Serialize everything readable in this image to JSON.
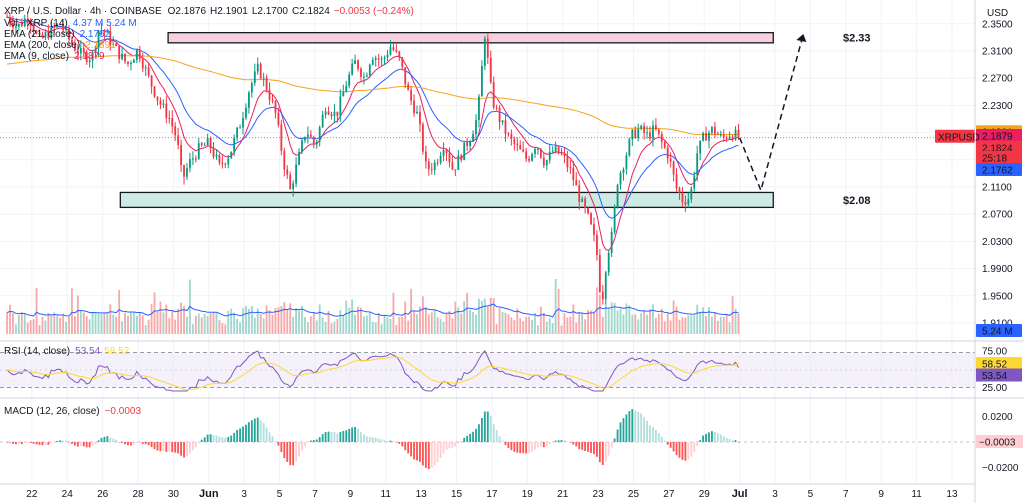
{
  "header": {
    "symbol_line": "XRP / U.S. Dollar · 4h · COINBASE",
    "open": "O2.1876",
    "high": "H2.1901",
    "low": "L2.1700",
    "close": "C2.1824",
    "change": "−0.0053 (−0.24%)"
  },
  "price_axis": {
    "unit": "USD"
  },
  "indicators": [
    {
      "label": "Vol · XRP (14)",
      "value": "4.37 M 5.24 M",
      "color": "#2962ff"
    },
    {
      "label": "EMA (21, close)",
      "value": "2.1762",
      "color": "#2962ff"
    },
    {
      "label": "EMA (200, close)",
      "value": "2.1891",
      "color": "#f7a21b"
    },
    {
      "label": "EMA (9, close)",
      "value": "2.1879",
      "color": "#e91e63"
    }
  ],
  "zones": [
    {
      "name": "resistance",
      "label": "$2.33",
      "low": 2.322,
      "high": 2.337,
      "fill": "#f8d0dc"
    },
    {
      "name": "support",
      "label": "$2.08",
      "low": 2.08,
      "high": 2.102,
      "fill": "#cdebe2"
    }
  ],
  "badges": {
    "ema200": {
      "text": "2.1891",
      "color": "#f7a21b",
      "value": 2.1891
    },
    "ema9": {
      "text": "2.1879",
      "color": "#e91e63",
      "value": 2.1879
    },
    "price": {
      "text": "2.1824",
      "color": "#f23645",
      "value": 2.1824
    },
    "countdown": {
      "text": "25:18",
      "color": "#f23645",
      "value": 2.1805
    },
    "ema21": {
      "text": "2.1762",
      "color": "#2962ff",
      "value": 2.1762
    },
    "symbol": "XRPUSD",
    "volume": {
      "text": "5.24 M",
      "color": "#2962ff"
    }
  },
  "rsi": {
    "label": "RSI (14, close)",
    "value": "53.54",
    "ma_value": "58.52",
    "levels": [
      "75.00",
      "25.00"
    ],
    "value_color": "#7e57c2",
    "ma_color": "#fdd835"
  },
  "macd": {
    "label": "MACD (12, 26, close)",
    "value": "−0.0003",
    "ticks": [
      "0.0200",
      "−0.0200"
    ],
    "badge": "−0.0003"
  },
  "chart_data": {
    "type": "candlestick",
    "timeframe": "4h",
    "y_ticks": [
      2.35,
      2.31,
      2.27,
      2.23,
      2.19,
      2.15,
      2.11,
      2.07,
      2.03,
      1.99,
      1.95,
      1.91
    ],
    "y_tick_labels": [
      "2.3500",
      "2.3100",
      "2.2700",
      "2.2300",
      "2.1900",
      "2.1500",
      "2.1100",
      "2.0700",
      "2.0300",
      "1.9900",
      "1.9500",
      "1.9100"
    ],
    "ylim": [
      1.885,
      2.385
    ],
    "x_tick_labels": [
      "22",
      "24",
      "26",
      "28",
      "30",
      "Jun",
      "3",
      "5",
      "7",
      "9",
      "11",
      "13",
      "15",
      "17",
      "19",
      "21",
      "23",
      "25",
      "27",
      "29",
      "Jul",
      "3",
      "5",
      "7",
      "9",
      "11",
      "13"
    ],
    "x_tick_days": [
      22,
      24,
      26,
      28,
      30,
      32,
      34,
      36,
      38,
      40,
      42,
      44,
      46,
      48,
      50,
      52,
      54,
      56,
      58,
      60,
      62,
      64,
      66,
      68,
      70,
      72,
      74
    ],
    "xlim": [
      20.2,
      75.3
    ],
    "anchors": [
      [
        20.6,
        2.36
      ],
      [
        21.2,
        2.345
      ],
      [
        21.8,
        2.362
      ],
      [
        22.4,
        2.325
      ],
      [
        23.0,
        2.338
      ],
      [
        23.6,
        2.35
      ],
      [
        24.2,
        2.322
      ],
      [
        24.8,
        2.305
      ],
      [
        25.4,
        2.3
      ],
      [
        25.8,
        2.345
      ],
      [
        26.2,
        2.335
      ],
      [
        26.8,
        2.31
      ],
      [
        27.4,
        2.29
      ],
      [
        28.0,
        2.312
      ],
      [
        28.6,
        2.27
      ],
      [
        29.2,
        2.235
      ],
      [
        29.8,
        2.21
      ],
      [
        30.2,
        2.18
      ],
      [
        30.5,
        2.12
      ],
      [
        30.9,
        2.145
      ],
      [
        31.4,
        2.165
      ],
      [
        32.0,
        2.175
      ],
      [
        32.6,
        2.14
      ],
      [
        33.2,
        2.16
      ],
      [
        33.8,
        2.205
      ],
      [
        34.3,
        2.255
      ],
      [
        34.8,
        2.285
      ],
      [
        35.3,
        2.255
      ],
      [
        35.8,
        2.215
      ],
      [
        36.2,
        2.15
      ],
      [
        36.6,
        2.105
      ],
      [
        37.0,
        2.145
      ],
      [
        37.5,
        2.195
      ],
      [
        38.0,
        2.17
      ],
      [
        38.6,
        2.23
      ],
      [
        39.2,
        2.215
      ],
      [
        39.8,
        2.265
      ],
      [
        40.3,
        2.295
      ],
      [
        40.8,
        2.27
      ],
      [
        41.2,
        2.305
      ],
      [
        41.8,
        2.295
      ],
      [
        42.3,
        2.318
      ],
      [
        42.8,
        2.295
      ],
      [
        43.3,
        2.245
      ],
      [
        43.8,
        2.215
      ],
      [
        44.3,
        2.135
      ],
      [
        44.8,
        2.145
      ],
      [
        45.3,
        2.175
      ],
      [
        45.8,
        2.135
      ],
      [
        46.2,
        2.155
      ],
      [
        46.8,
        2.185
      ],
      [
        47.2,
        2.215
      ],
      [
        47.6,
        2.335
      ],
      [
        48.0,
        2.24
      ],
      [
        48.5,
        2.205
      ],
      [
        49.0,
        2.18
      ],
      [
        49.5,
        2.165
      ],
      [
        50.0,
        2.15
      ],
      [
        50.5,
        2.175
      ],
      [
        51.0,
        2.145
      ],
      [
        51.5,
        2.165
      ],
      [
        52.0,
        2.155
      ],
      [
        52.5,
        2.13
      ],
      [
        53.0,
        2.09
      ],
      [
        53.5,
        2.06
      ],
      [
        53.9,
        2.02
      ],
      [
        54.2,
        1.935
      ],
      [
        54.5,
        2.01
      ],
      [
        54.8,
        2.04
      ],
      [
        55.1,
        2.12
      ],
      [
        55.5,
        2.15
      ],
      [
        55.9,
        2.185
      ],
      [
        56.3,
        2.195
      ],
      [
        56.8,
        2.185
      ],
      [
        57.2,
        2.195
      ],
      [
        57.6,
        2.175
      ],
      [
        58.0,
        2.155
      ],
      [
        58.4,
        2.11
      ],
      [
        58.8,
        2.09
      ],
      [
        59.2,
        2.095
      ],
      [
        59.6,
        2.16
      ],
      [
        60.0,
        2.185
      ],
      [
        60.5,
        2.195
      ],
      [
        61.0,
        2.18
      ],
      [
        61.5,
        2.19
      ],
      [
        62.0,
        2.1824
      ]
    ],
    "forecast_path": [
      [
        62.0,
        2.1824
      ],
      [
        63.2,
        2.105
      ],
      [
        65.6,
        2.335
      ]
    ],
    "volume_last_m": 5.24,
    "volume_scale_max_m": 14,
    "rsi_last": 53.54,
    "rsi_ma_last": 58.52,
    "macd_last": -0.0003,
    "macd_lim": [
      -0.03,
      0.03
    ]
  }
}
